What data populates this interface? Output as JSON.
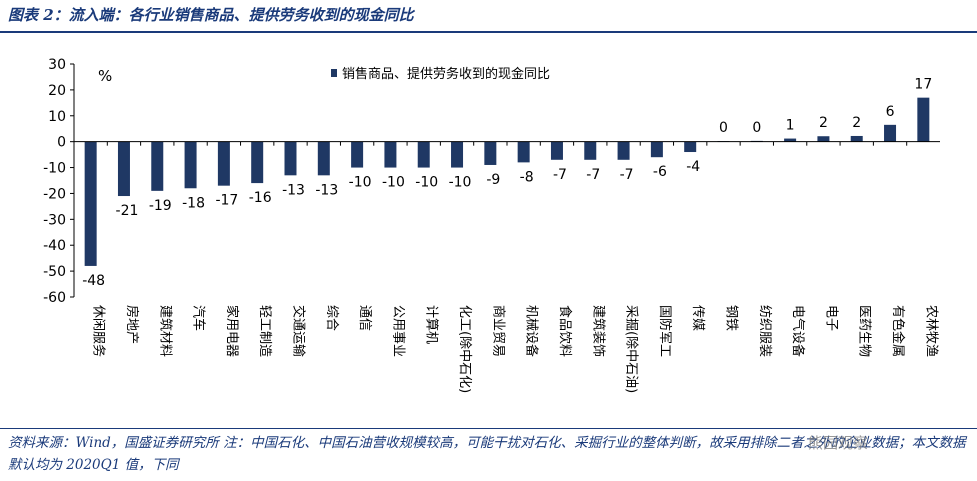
{
  "title": "图表 2：流入端：各行业销售商品、提供劳务收到的现金同比",
  "note": "资料来源：Wind，国盛证券研究所 注：中国石化、中国石油营收规模较高，可能干扰对石化、采掘行业的整体判断，故采用排除二者之外的企业数据；本文数据默认均为 2020Q1 值，下同",
  "watermark": "熊园观察",
  "colors": {
    "bar": "#1f3864",
    "text_blue": "#1a3a7a",
    "axis": "#000000"
  },
  "chart_data": {
    "type": "bar",
    "unit_label": "%",
    "legend": {
      "position": "top-right",
      "entries": [
        "销售商品、提供劳务收到的现金同比"
      ]
    },
    "ylim": [
      -60,
      30
    ],
    "yticks": [
      30,
      20,
      10,
      0,
      -10,
      -20,
      -30,
      -40,
      -50,
      -60
    ],
    "grid": false,
    "categories": [
      "休闲服务",
      "房地产",
      "建筑材料",
      "汽车",
      "家用电器",
      "轻工制造",
      "交通运输",
      "综合",
      "通信",
      "公用事业",
      "计算机",
      "化工(除中石化)",
      "商业贸易",
      "机械设备",
      "食品饮料",
      "建筑装饰",
      "采掘(除中石油)",
      "国防军工",
      "传媒",
      "钢铁",
      "纺织服装",
      "电气设备",
      "电子",
      "医药生物",
      "有色金属",
      "农林牧渔"
    ],
    "series": [
      {
        "name": "销售商品、提供劳务收到的现金同比",
        "values": [
          -48,
          -21,
          -19,
          -18,
          -17,
          -16,
          -13,
          -13,
          -10,
          -10,
          -10,
          -10,
          -9,
          -8,
          -7,
          -7,
          -7,
          -6,
          -4,
          0.2,
          0.3,
          1.2,
          2.1,
          2.2,
          6.5,
          17
        ],
        "labels": [
          "-48",
          "-21",
          "-19",
          "-18",
          "-17",
          "-16",
          "-13",
          "-13",
          "-10",
          "-10",
          "-10",
          "-10",
          "-9",
          "-8",
          "-7",
          "-7",
          "-7",
          "-6",
          "-4",
          "0",
          "0",
          "1",
          "2",
          "2",
          "6",
          "17"
        ]
      }
    ]
  }
}
